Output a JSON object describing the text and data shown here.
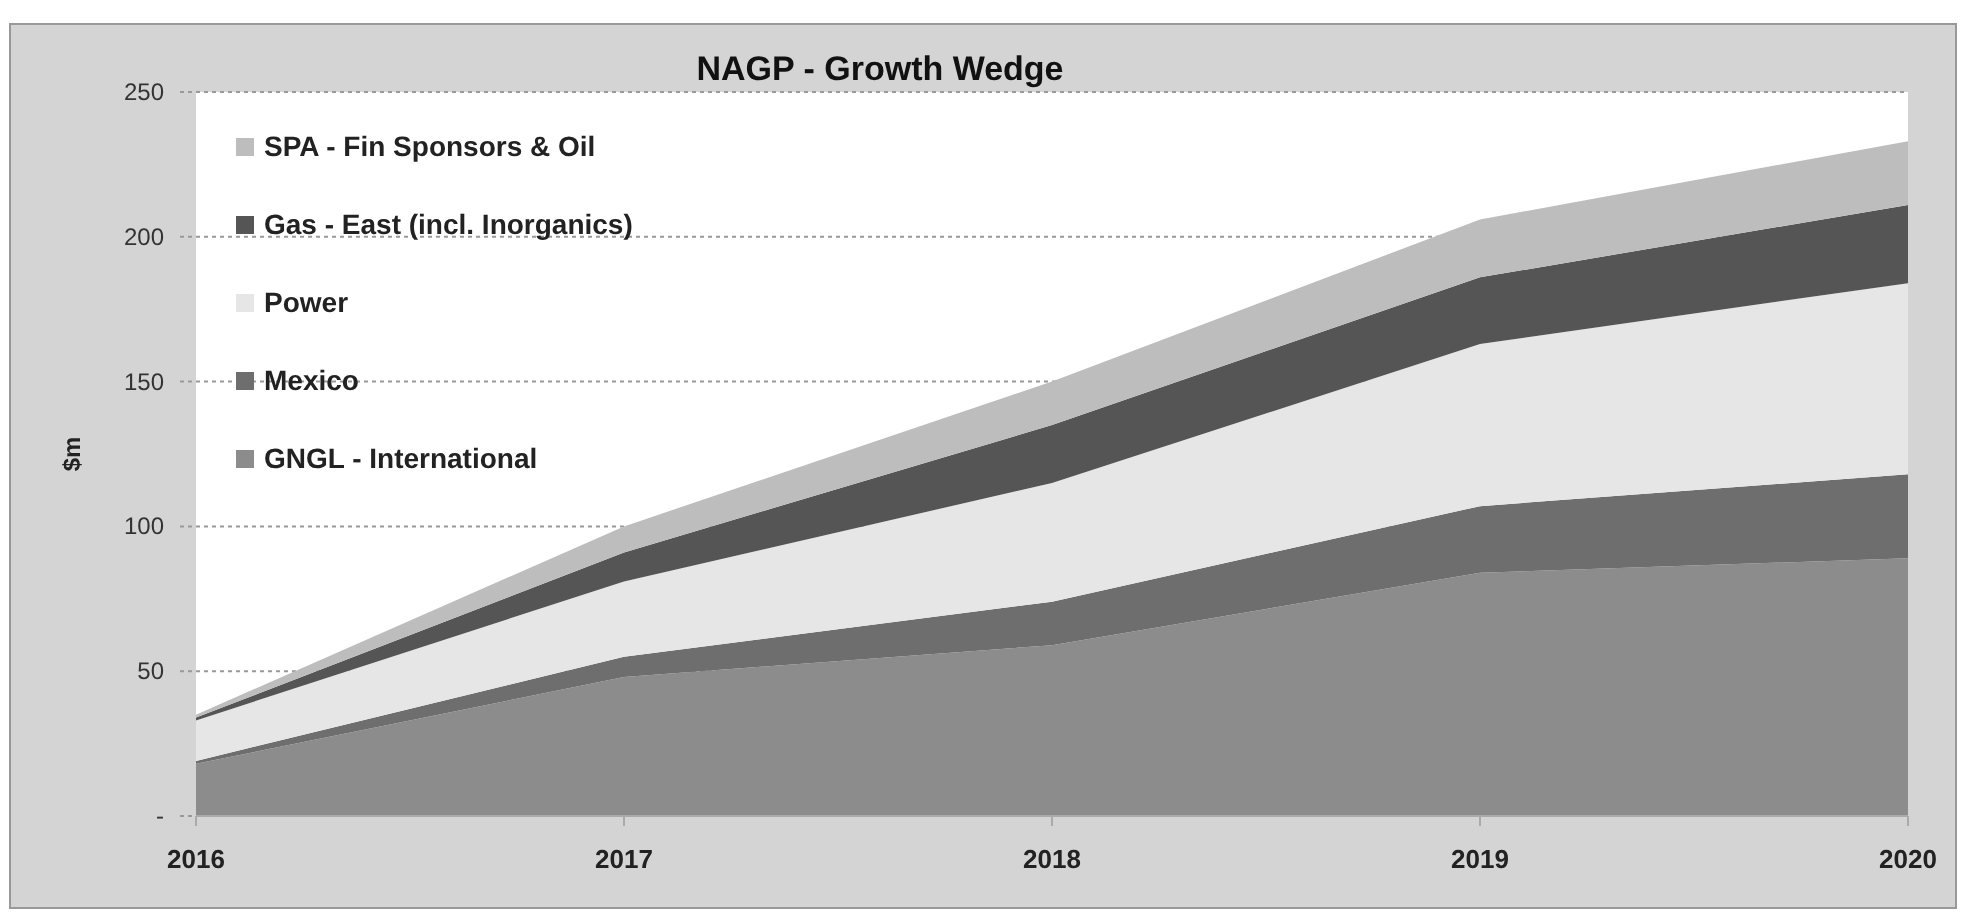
{
  "chart_data": {
    "type": "area",
    "title": "NAGP - Growth Wedge",
    "ylabel": "$m",
    "stacked": true,
    "x": [
      2016,
      2017,
      2018,
      2019,
      2020
    ],
    "xlim": [
      2016,
      2020
    ],
    "xticks": [
      2016,
      2017,
      2018,
      2019,
      2020
    ],
    "ylim": [
      0,
      250
    ],
    "yticks": [
      {
        "value": 0,
        "label": "-"
      },
      50,
      100,
      150,
      200,
      250
    ],
    "grid": "y",
    "legend": "top left",
    "series": [
      {
        "name": "GNGL - International",
        "color": "#8c8c8c",
        "values": [
          18,
          48,
          59,
          84,
          89
        ]
      },
      {
        "name": "Mexico",
        "color": "#6e6e6e",
        "values": [
          1,
          7,
          15,
          23,
          29
        ]
      },
      {
        "name": "Power",
        "color": "#e6e6e6",
        "values": [
          14,
          26,
          41,
          56,
          66
        ]
      },
      {
        "name": "Gas - East (incl. Inorganics)",
        "color": "#555555",
        "values": [
          1,
          10,
          20,
          23,
          27
        ]
      },
      {
        "name": "SPA - Fin Sponsors & Oil",
        "color": "#bdbdbd",
        "values": [
          1,
          9,
          15,
          20,
          22
        ]
      }
    ]
  }
}
